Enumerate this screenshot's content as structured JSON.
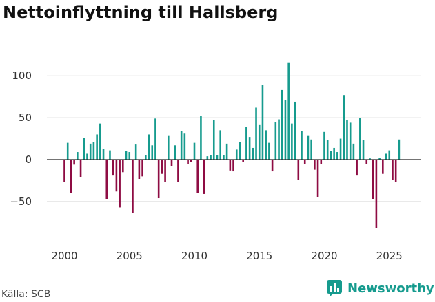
{
  "chart_data": {
    "type": "bar",
    "title": "Nettoinflyttning till Hallsberg",
    "xlabel": "",
    "ylabel": "",
    "ylim": [
      -85,
      120
    ],
    "yticks": [
      -50,
      0,
      50,
      100
    ],
    "ytick_labels": [
      "−50",
      "0",
      "50",
      "100"
    ],
    "xticks": [
      2000,
      2005,
      2010,
      2015,
      2020,
      2025
    ],
    "xtick_labels": [
      "2000",
      "2005",
      "2010",
      "2015",
      "2020",
      "2025"
    ],
    "start_year": 2000,
    "periods_per_year": 4,
    "values": [
      -27,
      20,
      -40,
      -6,
      9,
      -21,
      26,
      7,
      19,
      21,
      30,
      43,
      13,
      -47,
      11,
      -19,
      -38,
      -57,
      -15,
      10,
      9,
      -64,
      18,
      -23,
      -20,
      5,
      30,
      17,
      49,
      -46,
      -17,
      -27,
      29,
      -8,
      17,
      -27,
      34,
      31,
      -5,
      -3,
      20,
      -40,
      52,
      -41,
      4,
      5,
      47,
      5,
      35,
      5,
      19,
      -13,
      -14,
      12,
      21,
      -3,
      39,
      27,
      14,
      62,
      42,
      89,
      35,
      20,
      -14,
      45,
      48,
      83,
      71,
      116,
      43,
      69,
      -24,
      34,
      -5,
      29,
      24,
      -12,
      -45,
      -5,
      33,
      23,
      10,
      14,
      9,
      25,
      77,
      47,
      44,
      19,
      -19,
      50,
      23,
      -5,
      2,
      -47,
      -82,
      2,
      -17,
      7,
      11,
      -24,
      -27,
      24
    ],
    "colors": {
      "positive": "#169b8e",
      "negative": "#8e0c43"
    }
  },
  "source": "Källa: SCB",
  "brand": "Newsworthy"
}
